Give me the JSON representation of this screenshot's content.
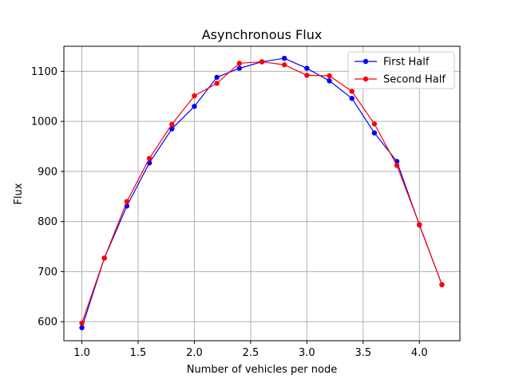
{
  "chart_data": {
    "type": "line",
    "title": "Asynchronous Flux",
    "xlabel": "Number of vehicles per node",
    "ylabel": "Flux",
    "xlim": [
      0.84,
      4.36
    ],
    "ylim": [
      562,
      1150
    ],
    "xticks": [
      1.0,
      1.5,
      2.0,
      2.5,
      3.0,
      3.5,
      4.0
    ],
    "xtick_labels": [
      "1.0",
      "1.5",
      "2.0",
      "2.5",
      "3.0",
      "3.5",
      "4.0"
    ],
    "yticks": [
      600,
      700,
      800,
      900,
      1000,
      1100
    ],
    "ytick_labels": [
      "600",
      "700",
      "800",
      "900",
      "1000",
      "1100"
    ],
    "grid": true,
    "legend_position": "top-right",
    "series": [
      {
        "name": "First Half",
        "color": "#0000ff",
        "x": [
          1.0,
          1.2,
          1.4,
          1.6,
          1.8,
          2.0,
          2.2,
          2.4,
          2.6,
          2.8,
          3.0,
          3.2,
          3.4,
          3.6,
          3.8,
          4.0,
          4.2
        ],
        "y": [
          588,
          727,
          831,
          917,
          985,
          1030,
          1088,
          1106,
          1119,
          1126,
          1106,
          1081,
          1046,
          977,
          920,
          793,
          674
        ]
      },
      {
        "name": "Second Half",
        "color": "#ff0000",
        "x": [
          1.0,
          1.2,
          1.4,
          1.6,
          1.8,
          2.0,
          2.2,
          2.4,
          2.6,
          2.8,
          3.0,
          3.2,
          3.4,
          3.6,
          3.8,
          4.0,
          4.2
        ],
        "y": [
          597,
          727,
          840,
          926,
          994,
          1051,
          1076,
          1116,
          1119,
          1113,
          1092,
          1091,
          1060,
          995,
          912,
          794,
          674
        ]
      }
    ]
  }
}
